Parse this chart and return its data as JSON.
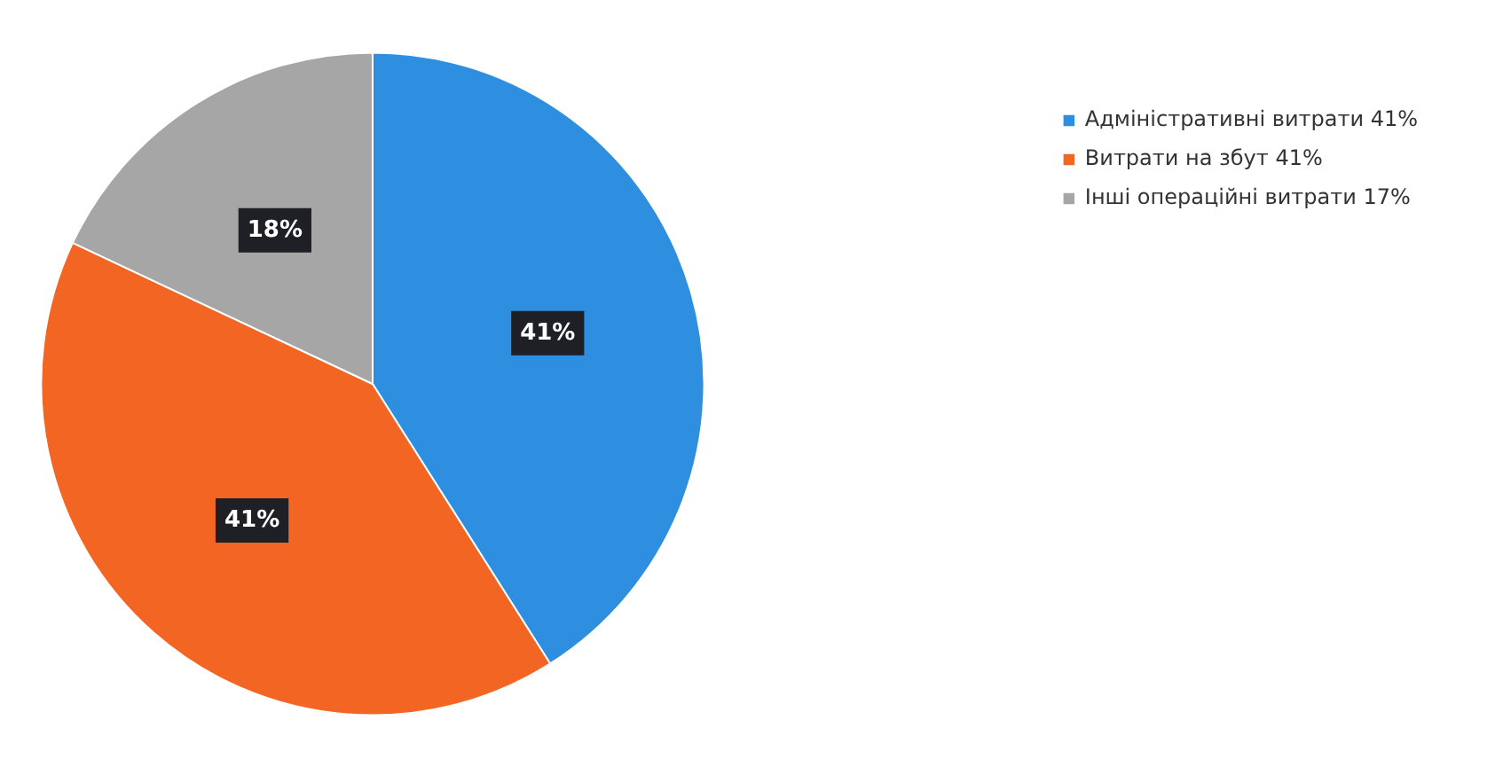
{
  "chart_data": {
    "type": "pie",
    "categories": [
      "Адміністративні витрати 41%",
      "Витрати на збут 41%",
      "Інші операційні витрати 17%"
    ],
    "values": [
      41,
      41,
      18
    ],
    "colors": [
      "#2e8fe0",
      "#f26522",
      "#a6a6a6"
    ],
    "value_labels": [
      "41%",
      "41%",
      "18%"
    ],
    "legend": "right"
  }
}
